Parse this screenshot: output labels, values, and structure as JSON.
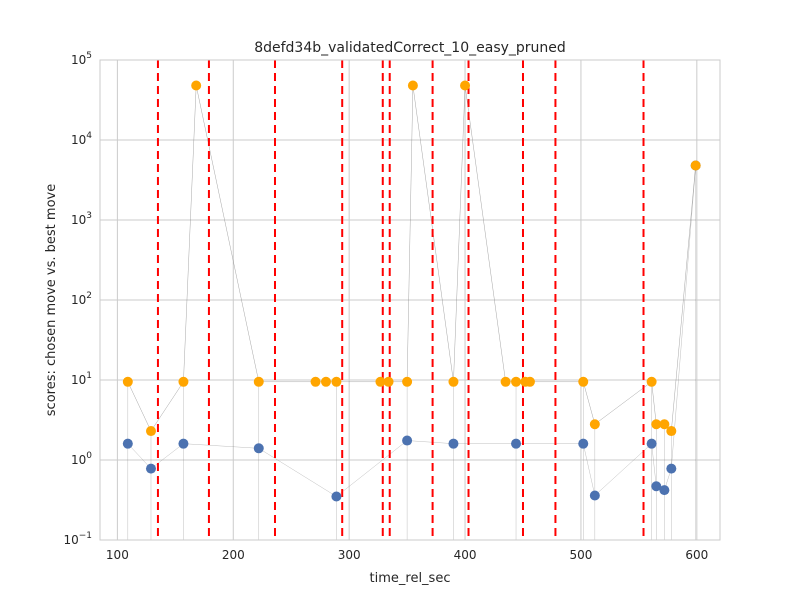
{
  "chart_data": {
    "type": "scatter",
    "title": "8defd34b_validatedCorrect_10_easy_pruned",
    "xlabel": "time_rel_sec",
    "ylabel": "scores: chosen move vs. best move",
    "xlim": [
      85,
      620
    ],
    "ylim": [
      0.1,
      100000
    ],
    "yscale": "log",
    "grid": true,
    "x_ticks": [
      {
        "value": 100,
        "label": "100"
      },
      {
        "value": 200,
        "label": "200"
      },
      {
        "value": 300,
        "label": "300"
      },
      {
        "value": 400,
        "label": "400"
      },
      {
        "value": 500,
        "label": "500"
      },
      {
        "value": 600,
        "label": "600"
      }
    ],
    "y_ticks": [
      {
        "value": 0.1,
        "base": "10",
        "exp": "−1"
      },
      {
        "value": 1,
        "base": "10",
        "exp": "0"
      },
      {
        "value": 10,
        "base": "10",
        "exp": "1"
      },
      {
        "value": 100,
        "base": "10",
        "exp": "2"
      },
      {
        "value": 1000,
        "base": "10",
        "exp": "3"
      },
      {
        "value": 10000,
        "base": "10",
        "exp": "4"
      },
      {
        "value": 100000,
        "base": "10",
        "exp": "5"
      }
    ],
    "colors": {
      "chosen": "#4c72b0",
      "best": "#ffa500",
      "vline": "#ff0000",
      "connector": "#808080",
      "grid": "#cbcbcb"
    },
    "vlines": [
      135,
      179,
      236,
      294,
      329,
      335,
      372,
      403,
      450,
      478,
      554
    ],
    "pairs": [
      {
        "x": 109,
        "chosen": 1.6,
        "best": 9.5
      },
      {
        "x": 129,
        "chosen": 0.78,
        "best": 2.3
      },
      {
        "x": 157,
        "chosen": 1.6,
        "best": 9.5
      },
      {
        "x": 168,
        "best": 48000
      },
      {
        "x": 222,
        "chosen": 1.4,
        "best": 9.5
      },
      {
        "x": 271,
        "best": 9.5
      },
      {
        "x": 280,
        "best": 9.5
      },
      {
        "x": 289,
        "chosen": 0.35,
        "best": 9.5
      },
      {
        "x": 327,
        "best": 9.5
      },
      {
        "x": 334,
        "best": 9.5
      },
      {
        "x": 350,
        "chosen": 1.75,
        "best": 9.5
      },
      {
        "x": 355,
        "best": 48000
      },
      {
        "x": 390,
        "chosen": 1.6,
        "best": 9.5
      },
      {
        "x": 400,
        "best": 48000
      },
      {
        "x": 435,
        "best": 9.5
      },
      {
        "x": 444,
        "chosen": 1.6,
        "best": 9.5
      },
      {
        "x": 452,
        "best": 9.5
      },
      {
        "x": 456,
        "best": 9.5
      },
      {
        "x": 502,
        "chosen": 1.6,
        "best": 9.5
      },
      {
        "x": 512,
        "chosen": 0.36,
        "best": 2.8
      },
      {
        "x": 561,
        "chosen": 1.6,
        "best": 9.5
      },
      {
        "x": 565,
        "chosen": 0.47,
        "best": 2.8
      },
      {
        "x": 572,
        "chosen": 0.42,
        "best": 2.8
      },
      {
        "x": 578,
        "chosen": 0.78,
        "best": 2.3
      },
      {
        "x": 599,
        "chosen": 4800,
        "best": 4800
      }
    ]
  }
}
